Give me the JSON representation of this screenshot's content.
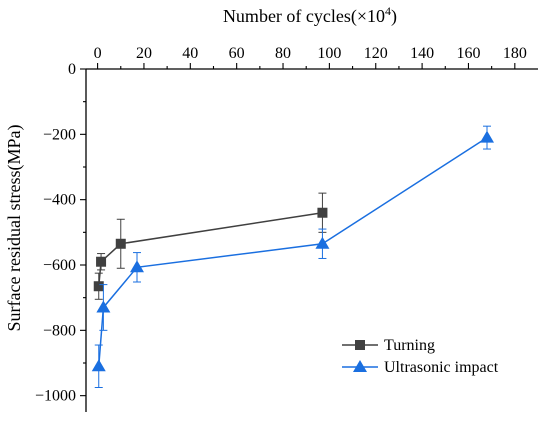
{
  "chart_data": {
    "type": "line",
    "xlabel": "Number of cycles(×10",
    "xlabel_sup": "4",
    "xlabel_end": ")",
    "ylabel": "Surface residual stress(MPa)",
    "xlim": [
      -5,
      190
    ],
    "ylim": [
      -1050,
      0
    ],
    "xticks": [
      0,
      20,
      40,
      60,
      80,
      100,
      120,
      140,
      160,
      180
    ],
    "yticks": [
      0,
      -200,
      -400,
      -600,
      -800,
      -1000
    ],
    "xtick_labels": [
      "0",
      "20",
      "40",
      "60",
      "80",
      "100",
      "120",
      "140",
      "160",
      "180"
    ],
    "ytick_labels": [
      "0",
      "−200",
      "−400",
      "−600",
      "−800",
      "−1000"
    ],
    "x_axis_position": "top",
    "legend_position": "bottom-right",
    "series": [
      {
        "name": "Turning",
        "color": "#404040",
        "marker": "square",
        "points": [
          {
            "x": 0.5,
            "y": -665,
            "err": 40
          },
          {
            "x": 1.5,
            "y": -590,
            "err": 25
          },
          {
            "x": 10,
            "y": -535,
            "err": 75
          },
          {
            "x": 97,
            "y": -440,
            "err": 60
          }
        ]
      },
      {
        "name": "Ultrasonic impact",
        "color": "#1a6fe0",
        "marker": "triangle",
        "points": [
          {
            "x": 0.5,
            "y": -910,
            "err": 65
          },
          {
            "x": 2.5,
            "y": -730,
            "err": 70
          },
          {
            "x": 17,
            "y": -607,
            "err": 45
          },
          {
            "x": 97,
            "y": -535,
            "err": 45
          },
          {
            "x": 168,
            "y": -210,
            "err": 35
          }
        ]
      }
    ]
  }
}
